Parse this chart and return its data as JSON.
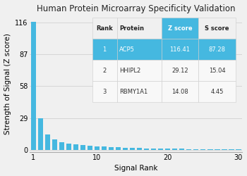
{
  "title": "Human Protein Microarray Specificity Validation",
  "xlabel": "Signal Rank",
  "ylabel": "Strength of Signal (Z score)",
  "bar_color": "#45b8e0",
  "yticks": [
    0,
    29,
    58,
    87,
    116
  ],
  "xticks": [
    1,
    10,
    20,
    30
  ],
  "xlim": [
    0.5,
    30.5
  ],
  "ylim": [
    -2,
    122
  ],
  "bar_values": [
    116.41,
    29.12,
    14.08,
    9.5,
    7.2,
    5.8,
    4.9,
    4.2,
    3.7,
    3.3,
    2.9,
    2.6,
    2.3,
    2.1,
    1.9,
    1.7,
    1.55,
    1.4,
    1.3,
    1.2,
    1.1,
    1.0,
    0.95,
    0.9,
    0.85,
    0.8,
    0.75,
    0.7,
    0.65,
    0.6
  ],
  "table_data": [
    [
      "Rank",
      "Protein",
      "Z score",
      "S score"
    ],
    [
      "1",
      "ACP5",
      "116.41",
      "87.28"
    ],
    [
      "2",
      "HHIPL2",
      "29.12",
      "15.04"
    ],
    [
      "3",
      "RBMY1A1",
      "14.08",
      "4.45"
    ]
  ],
  "table_header_bg_default": "#f0f0f0",
  "table_header_bg_zscore": "#45b8e0",
  "table_row1_bg": "#45b8e0",
  "table_row_bg": "#f8f8f8",
  "table_sep_color": "#cccccc",
  "background_color": "#f0f0f0",
  "title_fontsize": 8.5,
  "axis_fontsize": 7.5,
  "tick_fontsize": 7,
  "table_fontsize": 6.0
}
